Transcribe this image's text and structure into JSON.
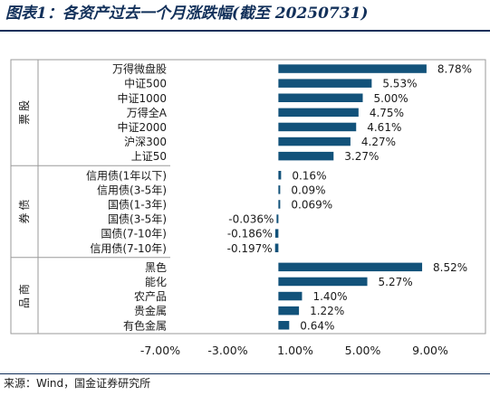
{
  "title": "图表1：各资产过去一个月涨跌幅(截至 20250731)",
  "source": "来源：Wind，国金证券研究所",
  "chart_data": {
    "type": "bar",
    "orientation": "horizontal",
    "title": "图表1：各资产过去一个月涨跌幅(截至 20250731)",
    "xlim": [
      -7.0,
      9.0
    ],
    "xticks": [
      -7.0,
      -3.0,
      1.0,
      5.0,
      9.0
    ],
    "xtick_labels": [
      "-7.00%",
      "-3.00%",
      "1.00%",
      "5.00%",
      "9.00%"
    ],
    "bar_color": "#12527a",
    "grid": false,
    "legend": "none",
    "groups": [
      {
        "name": "股票",
        "categories": [
          "万得微盘股",
          "中证500",
          "中证1000",
          "万得全A",
          "中证2000",
          "沪深300",
          "上证50"
        ],
        "values": [
          8.78,
          5.53,
          5.0,
          4.75,
          4.61,
          4.27,
          3.27
        ],
        "labels": [
          "8.78%",
          "5.53%",
          "5.00%",
          "4.75%",
          "4.61%",
          "4.27%",
          "3.27%"
        ]
      },
      {
        "name": "债券",
        "categories": [
          "信用债(1年以下)",
          "信用债(3-5年)",
          "国债(1-3年)",
          "国债(3-5年)",
          "国债(7-10年)",
          "信用债(7-10年)"
        ],
        "values": [
          0.16,
          0.09,
          0.069,
          -0.036,
          -0.186,
          -0.197
        ],
        "labels": [
          "0.16%",
          "0.09%",
          "0.069%",
          "-0.036%",
          "-0.186%",
          "-0.197%"
        ]
      },
      {
        "name": "商品",
        "categories": [
          "黑色",
          "能化",
          "农产品",
          "贵金属",
          "有色金属"
        ],
        "values": [
          8.52,
          5.27,
          1.4,
          1.22,
          0.64
        ],
        "labels": [
          "8.52%",
          "5.27%",
          "1.40%",
          "1.22%",
          "0.64%"
        ]
      }
    ]
  }
}
